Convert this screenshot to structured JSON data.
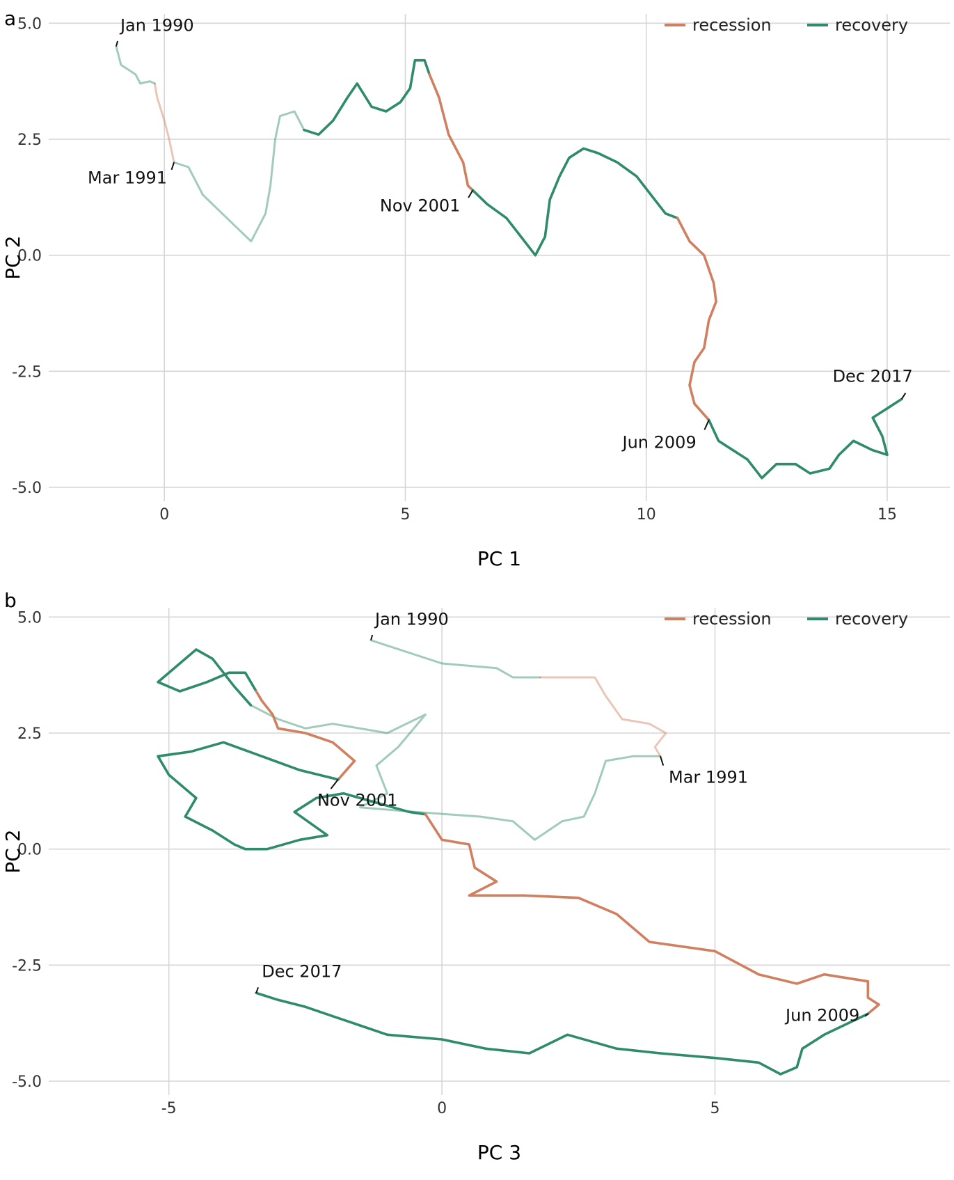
{
  "colors": {
    "recession": "#d08060",
    "recovery": "#2e8b6b",
    "grid": "#d6d6d6",
    "background": "#ffffff"
  },
  "chart_data": [
    {
      "type": "line",
      "panel_label": "a",
      "xlabel": "PC 1",
      "ylabel": "PC 2",
      "xlim": [
        -2.4,
        16.3
      ],
      "ylim": [
        -5.3,
        5.2
      ],
      "xticks": [
        0,
        5,
        10,
        15
      ],
      "xtick_labels": [
        "0",
        "5",
        "10",
        "15"
      ],
      "yticks": [
        -5.0,
        -2.5,
        0.0,
        2.5,
        5.0
      ],
      "ytick_labels": [
        "-5.0",
        "-2.5",
        "0.0",
        "2.5",
        "5.0"
      ],
      "grid": true,
      "legend_position": "top-right",
      "legend": [
        {
          "name": "recession",
          "color": "#d08060"
        },
        {
          "name": "recovery",
          "color": "#2e8b6b"
        }
      ],
      "series": [
        {
          "name": "recovery",
          "color": "#2e8b6b",
          "faded": true,
          "points": [
            [
              -1.0,
              4.5
            ],
            [
              -0.9,
              4.1
            ],
            [
              -0.6,
              3.9
            ],
            [
              -0.5,
              3.7
            ],
            [
              -0.3,
              3.75
            ],
            [
              -0.2,
              3.7
            ]
          ]
        },
        {
          "name": "recession",
          "color": "#d08060",
          "faded": true,
          "points": [
            [
              -0.2,
              3.7
            ],
            [
              -0.15,
              3.4
            ],
            [
              0.0,
              2.9
            ],
            [
              0.1,
              2.5
            ],
            [
              0.2,
              2.0
            ]
          ]
        },
        {
          "name": "recovery",
          "color": "#2e8b6b",
          "faded": true,
          "points": [
            [
              0.2,
              2.0
            ],
            [
              0.5,
              1.9
            ],
            [
              0.8,
              1.3
            ],
            [
              1.2,
              0.9
            ],
            [
              1.5,
              0.6
            ],
            [
              1.8,
              0.3
            ],
            [
              2.1,
              0.9
            ],
            [
              2.2,
              1.5
            ],
            [
              2.3,
              2.5
            ],
            [
              2.4,
              3.0
            ],
            [
              2.7,
              3.1
            ],
            [
              2.9,
              2.7
            ]
          ]
        },
        {
          "name": "recovery",
          "color": "#2e8b6b",
          "faded": false,
          "points": [
            [
              2.9,
              2.7
            ],
            [
              3.2,
              2.6
            ],
            [
              3.5,
              2.9
            ],
            [
              3.8,
              3.4
            ],
            [
              4.0,
              3.7
            ],
            [
              4.3,
              3.2
            ],
            [
              4.6,
              3.1
            ],
            [
              4.9,
              3.3
            ],
            [
              5.1,
              3.6
            ],
            [
              5.2,
              4.2
            ],
            [
              5.4,
              4.2
            ],
            [
              5.5,
              3.9
            ]
          ]
        },
        {
          "name": "recession",
          "color": "#d08060",
          "faded": false,
          "points": [
            [
              5.5,
              3.9
            ],
            [
              5.7,
              3.4
            ],
            [
              5.9,
              2.6
            ],
            [
              6.2,
              2.0
            ],
            [
              6.3,
              1.5
            ],
            [
              6.4,
              1.4
            ]
          ]
        },
        {
          "name": "recovery",
          "color": "#2e8b6b",
          "faded": false,
          "points": [
            [
              6.4,
              1.4
            ],
            [
              6.7,
              1.1
            ],
            [
              7.1,
              0.8
            ],
            [
              7.4,
              0.4
            ],
            [
              7.7,
              0.0
            ],
            [
              7.9,
              0.4
            ],
            [
              8.0,
              1.2
            ],
            [
              8.2,
              1.7
            ],
            [
              8.4,
              2.1
            ],
            [
              8.7,
              2.3
            ],
            [
              9.0,
              2.2
            ],
            [
              9.4,
              2.0
            ],
            [
              9.8,
              1.7
            ],
            [
              10.1,
              1.3
            ],
            [
              10.4,
              0.9
            ],
            [
              10.65,
              0.8
            ]
          ]
        },
        {
          "name": "recession",
          "color": "#d08060",
          "faded": false,
          "points": [
            [
              10.65,
              0.8
            ],
            [
              10.9,
              0.3
            ],
            [
              11.2,
              0.0
            ],
            [
              11.4,
              -0.6
            ],
            [
              11.45,
              -1.0
            ],
            [
              11.3,
              -1.4
            ],
            [
              11.2,
              -2.0
            ],
            [
              11.0,
              -2.3
            ],
            [
              10.9,
              -2.8
            ],
            [
              11.0,
              -3.2
            ],
            [
              11.3,
              -3.55
            ]
          ]
        },
        {
          "name": "recovery",
          "color": "#2e8b6b",
          "faded": false,
          "points": [
            [
              11.3,
              -3.55
            ],
            [
              11.5,
              -4.0
            ],
            [
              11.8,
              -4.2
            ],
            [
              12.1,
              -4.4
            ],
            [
              12.4,
              -4.8
            ],
            [
              12.7,
              -4.5
            ],
            [
              13.1,
              -4.5
            ],
            [
              13.4,
              -4.7
            ],
            [
              13.8,
              -4.6
            ],
            [
              14.0,
              -4.3
            ],
            [
              14.3,
              -4.0
            ],
            [
              14.7,
              -4.2
            ],
            [
              15.0,
              -4.3
            ],
            [
              14.9,
              -3.9
            ],
            [
              14.7,
              -3.5
            ],
            [
              15.0,
              -3.3
            ],
            [
              15.3,
              -3.1
            ]
          ]
        }
      ],
      "annotations": [
        {
          "text": "Jan 1990",
          "x": -1.0,
          "y": 4.5
        },
        {
          "text": "Mar 1991",
          "x": 0.2,
          "y": 2.0
        },
        {
          "text": "Nov 2001",
          "x": 6.4,
          "y": 1.4
        },
        {
          "text": "Jun 2009",
          "x": 11.3,
          "y": -3.55
        },
        {
          "text": "Dec 2017",
          "x": 15.3,
          "y": -3.1
        }
      ]
    },
    {
      "type": "line",
      "panel_label": "b",
      "xlabel": "PC 3",
      "ylabel": "PC 2",
      "xlim": [
        -7.2,
        9.3
      ],
      "ylim": [
        -5.3,
        5.2
      ],
      "xticks": [
        -5,
        0,
        5
      ],
      "xtick_labels": [
        "-5",
        "0",
        "5"
      ],
      "yticks": [
        -5.0,
        -2.5,
        0.0,
        2.5,
        5.0
      ],
      "ytick_labels": [
        "-5.0",
        "-2.5",
        "0.0",
        "2.5",
        "5.0"
      ],
      "grid": true,
      "legend_position": "top-right",
      "legend": [
        {
          "name": "recession",
          "color": "#d08060"
        },
        {
          "name": "recovery",
          "color": "#2e8b6b"
        }
      ],
      "series": [
        {
          "name": "recovery",
          "color": "#2e8b6b",
          "faded": true,
          "points": [
            [
              -1.3,
              4.5
            ],
            [
              0.0,
              4.0
            ],
            [
              1.0,
              3.9
            ],
            [
              1.3,
              3.7
            ],
            [
              1.8,
              3.7
            ]
          ]
        },
        {
          "name": "recession",
          "color": "#d08060",
          "faded": true,
          "points": [
            [
              1.8,
              3.7
            ],
            [
              2.8,
              3.7
            ],
            [
              3.0,
              3.3
            ],
            [
              3.3,
              2.8
            ],
            [
              3.8,
              2.7
            ],
            [
              4.1,
              2.5
            ],
            [
              3.9,
              2.2
            ],
            [
              4.0,
              2.0
            ]
          ]
        },
        {
          "name": "recovery",
          "color": "#2e8b6b",
          "faded": true,
          "points": [
            [
              4.0,
              2.0
            ],
            [
              3.5,
              2.0
            ],
            [
              3.0,
              1.9
            ],
            [
              2.8,
              1.2
            ],
            [
              2.6,
              0.7
            ],
            [
              2.2,
              0.6
            ],
            [
              1.7,
              0.2
            ],
            [
              1.3,
              0.6
            ],
            [
              0.7,
              0.7
            ],
            [
              -0.5,
              0.8
            ],
            [
              -1.5,
              0.9
            ],
            [
              -1.0,
              1.2
            ],
            [
              -1.2,
              1.8
            ],
            [
              -0.8,
              2.2
            ],
            [
              -0.3,
              2.9
            ],
            [
              -1.0,
              2.5
            ],
            [
              -2.0,
              2.7
            ],
            [
              -2.5,
              2.6
            ],
            [
              -3.0,
              2.8
            ],
            [
              -3.5,
              3.1
            ]
          ]
        },
        {
          "name": "recovery",
          "color": "#2e8b6b",
          "faded": false,
          "points": [
            [
              -3.5,
              3.1
            ],
            [
              -3.8,
              3.5
            ],
            [
              -4.2,
              4.1
            ],
            [
              -4.5,
              4.3
            ],
            [
              -4.9,
              3.9
            ],
            [
              -5.2,
              3.6
            ],
            [
              -4.8,
              3.4
            ],
            [
              -4.3,
              3.6
            ],
            [
              -3.9,
              3.8
            ],
            [
              -3.6,
              3.8
            ],
            [
              -3.4,
              3.4
            ]
          ]
        },
        {
          "name": "recession",
          "color": "#d08060",
          "faded": false,
          "points": [
            [
              -3.4,
              3.4
            ],
            [
              -3.3,
              3.2
            ],
            [
              -3.1,
              2.9
            ],
            [
              -3.0,
              2.6
            ],
            [
              -2.5,
              2.5
            ],
            [
              -2.0,
              2.3
            ],
            [
              -1.6,
              1.9
            ],
            [
              -1.9,
              1.5
            ]
          ]
        },
        {
          "name": "recovery",
          "color": "#2e8b6b",
          "faded": false,
          "points": [
            [
              -1.9,
              1.5
            ],
            [
              -2.6,
              1.7
            ],
            [
              -3.3,
              2.0
            ],
            [
              -4.0,
              2.3
            ],
            [
              -4.6,
              2.1
            ],
            [
              -5.2,
              2.0
            ],
            [
              -5.0,
              1.6
            ],
            [
              -4.5,
              1.1
            ],
            [
              -4.7,
              0.7
            ],
            [
              -4.2,
              0.4
            ],
            [
              -3.8,
              0.1
            ],
            [
              -3.6,
              0.0
            ],
            [
              -3.2,
              0.0
            ],
            [
              -2.6,
              0.2
            ],
            [
              -2.1,
              0.3
            ],
            [
              -2.7,
              0.8
            ],
            [
              -2.3,
              1.1
            ],
            [
              -1.8,
              1.2
            ],
            [
              -1.2,
              1.0
            ],
            [
              -0.6,
              0.8
            ],
            [
              -0.3,
              0.75
            ]
          ]
        },
        {
          "name": "recession",
          "color": "#d08060",
          "faded": false,
          "points": [
            [
              -0.3,
              0.75
            ],
            [
              0.0,
              0.2
            ],
            [
              0.5,
              0.1
            ],
            [
              0.6,
              -0.4
            ],
            [
              1.0,
              -0.7
            ],
            [
              0.5,
              -1.0
            ],
            [
              1.5,
              -1.0
            ],
            [
              2.5,
              -1.05
            ],
            [
              3.2,
              -1.4
            ],
            [
              3.8,
              -2.0
            ],
            [
              5.0,
              -2.2
            ],
            [
              5.8,
              -2.7
            ],
            [
              6.5,
              -2.9
            ],
            [
              7.0,
              -2.7
            ],
            [
              7.8,
              -2.85
            ],
            [
              7.8,
              -3.2
            ],
            [
              8.0,
              -3.35
            ],
            [
              7.8,
              -3.55
            ]
          ]
        },
        {
          "name": "recovery",
          "color": "#2e8b6b",
          "faded": false,
          "points": [
            [
              7.8,
              -3.55
            ],
            [
              7.0,
              -4.0
            ],
            [
              6.6,
              -4.3
            ],
            [
              6.5,
              -4.7
            ],
            [
              6.2,
              -4.85
            ],
            [
              5.8,
              -4.6
            ],
            [
              5.0,
              -4.5
            ],
            [
              4.0,
              -4.4
            ],
            [
              3.2,
              -4.3
            ],
            [
              2.3,
              -4.0
            ],
            [
              1.6,
              -4.4
            ],
            [
              0.8,
              -4.3
            ],
            [
              0.0,
              -4.1
            ],
            [
              -1.0,
              -4.0
            ],
            [
              -1.5,
              -3.8
            ],
            [
              -2.0,
              -3.6
            ],
            [
              -2.5,
              -3.4
            ],
            [
              -3.0,
              -3.25
            ],
            [
              -3.4,
              -3.1
            ]
          ]
        }
      ],
      "annotations": [
        {
          "text": "Jan 1990",
          "x": -1.3,
          "y": 4.5
        },
        {
          "text": "Mar 1991",
          "x": 4.0,
          "y": 2.0
        },
        {
          "text": "Nov 2001",
          "x": -1.9,
          "y": 1.5
        },
        {
          "text": "Jun 2009",
          "x": 7.8,
          "y": -3.55
        },
        {
          "text": "Dec 2017",
          "x": -3.4,
          "y": -3.1
        }
      ]
    }
  ]
}
